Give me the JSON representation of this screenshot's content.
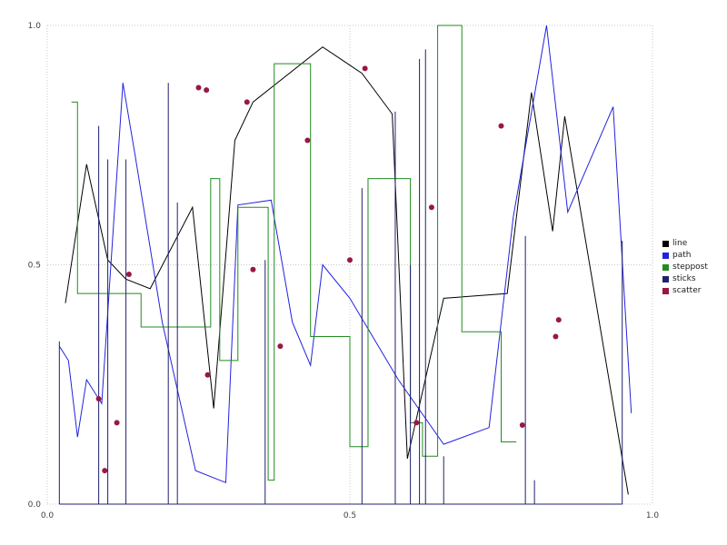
{
  "chart_data": {
    "type": "mixed",
    "title": "",
    "xlabel": "",
    "ylabel": "",
    "xlim": [
      0,
      1
    ],
    "ylim": [
      0,
      1
    ],
    "grid": "dotted",
    "legend_position": "right-center",
    "xticks": [
      {
        "value": 0.0,
        "label": "0.0"
      },
      {
        "value": 0.5,
        "label": "0.5"
      },
      {
        "value": 1.0,
        "label": "1.0"
      }
    ],
    "yticks": [
      {
        "value": 0.0,
        "label": "0.0"
      },
      {
        "value": 0.5,
        "label": "0.5"
      },
      {
        "value": 1.0,
        "label": "1.0"
      }
    ],
    "series": [
      {
        "name": "line",
        "type": "line",
        "color": "#000000",
        "points": [
          [
            0.03,
            0.42
          ],
          [
            0.065,
            0.71
          ],
          [
            0.1,
            0.51
          ],
          [
            0.13,
            0.47
          ],
          [
            0.17,
            0.45
          ],
          [
            0.24,
            0.62
          ],
          [
            0.275,
            0.2
          ],
          [
            0.31,
            0.76
          ],
          [
            0.34,
            0.84
          ],
          [
            0.455,
            0.955
          ],
          [
            0.52,
            0.9
          ],
          [
            0.57,
            0.815
          ],
          [
            0.595,
            0.095
          ],
          [
            0.655,
            0.43
          ],
          [
            0.76,
            0.44
          ],
          [
            0.8,
            0.86
          ],
          [
            0.835,
            0.57
          ],
          [
            0.855,
            0.81
          ],
          [
            0.96,
            0.02
          ]
        ]
      },
      {
        "name": "path",
        "type": "line",
        "color": "#2222dd",
        "points": [
          [
            0.02,
            0.33
          ],
          [
            0.035,
            0.3
          ],
          [
            0.05,
            0.14
          ],
          [
            0.065,
            0.26
          ],
          [
            0.09,
            0.21
          ],
          [
            0.125,
            0.88
          ],
          [
            0.145,
            0.73
          ],
          [
            0.19,
            0.38
          ],
          [
            0.245,
            0.07
          ],
          [
            0.295,
            0.045
          ],
          [
            0.315,
            0.625
          ],
          [
            0.37,
            0.635
          ],
          [
            0.405,
            0.38
          ],
          [
            0.435,
            0.29
          ],
          [
            0.455,
            0.5
          ],
          [
            0.5,
            0.43
          ],
          [
            0.58,
            0.26
          ],
          [
            0.655,
            0.125
          ],
          [
            0.73,
            0.16
          ],
          [
            0.77,
            0.6
          ],
          [
            0.825,
            1.0
          ],
          [
            0.86,
            0.61
          ],
          [
            0.935,
            0.83
          ],
          [
            0.965,
            0.19
          ]
        ]
      },
      {
        "name": "steppost",
        "type": "steppost",
        "color": "#228b22",
        "points": [
          [
            0.04,
            0.84
          ],
          [
            0.05,
            0.44
          ],
          [
            0.155,
            0.37
          ],
          [
            0.27,
            0.68
          ],
          [
            0.285,
            0.3
          ],
          [
            0.315,
            0.62
          ],
          [
            0.365,
            0.05
          ],
          [
            0.375,
            0.92
          ],
          [
            0.435,
            0.35
          ],
          [
            0.5,
            0.12
          ],
          [
            0.53,
            0.68
          ],
          [
            0.6,
            0.17
          ],
          [
            0.62,
            0.1
          ],
          [
            0.645,
            1.0
          ],
          [
            0.685,
            0.36
          ],
          [
            0.75,
            0.13
          ],
          [
            0.775,
            0.13
          ]
        ]
      },
      {
        "name": "sticks",
        "type": "sticks",
        "color": "#202070",
        "baseline": 0,
        "points": [
          [
            0.02,
            0.34
          ],
          [
            0.085,
            0.79
          ],
          [
            0.1,
            0.72
          ],
          [
            0.13,
            0.72
          ],
          [
            0.2,
            0.88
          ],
          [
            0.215,
            0.63
          ],
          [
            0.36,
            0.51
          ],
          [
            0.52,
            0.66
          ],
          [
            0.575,
            0.82
          ],
          [
            0.6,
            0.5
          ],
          [
            0.615,
            0.93
          ],
          [
            0.625,
            0.95
          ],
          [
            0.655,
            0.1
          ],
          [
            0.79,
            0.56
          ],
          [
            0.805,
            0.05
          ],
          [
            0.95,
            0.55
          ]
        ]
      },
      {
        "name": "scatter",
        "type": "scatter",
        "color": "#991747",
        "points": [
          [
            0.085,
            0.22
          ],
          [
            0.095,
            0.07
          ],
          [
            0.115,
            0.17
          ],
          [
            0.135,
            0.48
          ],
          [
            0.25,
            0.87
          ],
          [
            0.263,
            0.865
          ],
          [
            0.265,
            0.27
          ],
          [
            0.33,
            0.84
          ],
          [
            0.34,
            0.49
          ],
          [
            0.385,
            0.33
          ],
          [
            0.43,
            0.76
          ],
          [
            0.5,
            0.51
          ],
          [
            0.525,
            0.91
          ],
          [
            0.61,
            0.17
          ],
          [
            0.635,
            0.62
          ],
          [
            0.75,
            0.79
          ],
          [
            0.785,
            0.165
          ],
          [
            0.84,
            0.35
          ],
          [
            0.845,
            0.385
          ]
        ]
      }
    ]
  }
}
